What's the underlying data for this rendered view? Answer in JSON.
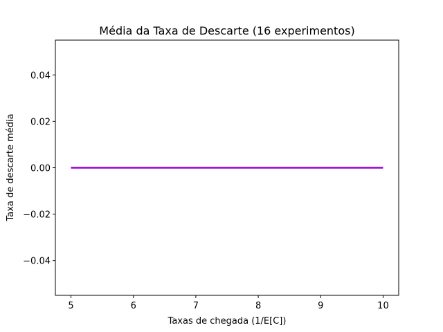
{
  "chart_data": {
    "type": "line",
    "title": "Média da Taxa de Descarte (16 experimentos)",
    "xlabel": "Taxas de chegada (1/E[C])",
    "ylabel": "Taxa de descarte média",
    "xlim": [
      4.75,
      10.25
    ],
    "ylim": [
      -0.055,
      0.055
    ],
    "xticks": [
      5,
      6,
      7,
      8,
      9,
      10
    ],
    "xtick_labels": [
      "5",
      "6",
      "7",
      "8",
      "9",
      "10"
    ],
    "yticks": [
      -0.04,
      -0.02,
      0.0,
      0.02,
      0.04
    ],
    "ytick_labels": [
      "−0.04",
      "−0.02",
      "0.00",
      "0.02",
      "0.04"
    ],
    "grid": false,
    "series": [
      {
        "x": [
          5,
          5.5,
          6,
          6.5,
          7,
          7.5,
          8,
          8.5,
          9,
          9.5,
          10
        ],
        "values": [
          0,
          0,
          0,
          0,
          0,
          0,
          0,
          0,
          0,
          0,
          0
        ],
        "color": "#9400d3"
      }
    ]
  }
}
